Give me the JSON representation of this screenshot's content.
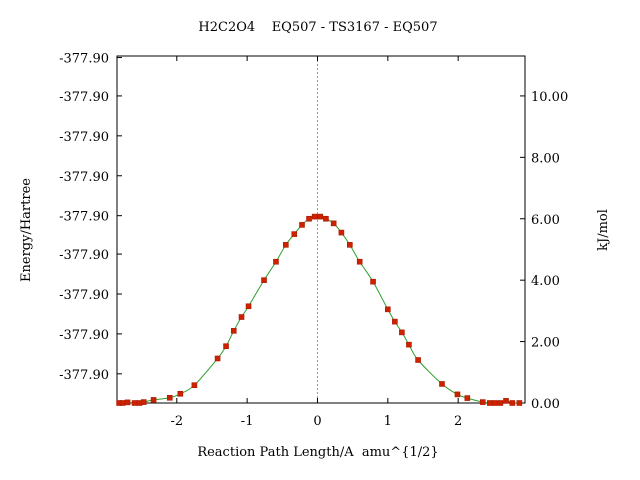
{
  "chart_data": {
    "type": "scatter",
    "title": "H2C2O4    EQ507 - TS3167 - EQ507",
    "xlabel": "Reaction Path Length/A  amu^{1/2}",
    "ylabel": "Energy/Hartree",
    "y2label": "kJ/mol",
    "xlim": [
      -2.85,
      2.95
    ],
    "ylim_kj": [
      0.0,
      11.3
    ],
    "x_ticks": [
      {
        "value": -2,
        "label": "-2"
      },
      {
        "value": -1,
        "label": "-1"
      },
      {
        "value": 0,
        "label": "0"
      },
      {
        "value": 1,
        "label": "1"
      },
      {
        "value": 2,
        "label": "2"
      }
    ],
    "y_left_ticks": [
      {
        "value": 0.0,
        "label": ""
      },
      {
        "value": 0.95,
        "label": "-377.90"
      },
      {
        "value": 2.25,
        "label": "-377.90"
      },
      {
        "value": 3.55,
        "label": "-377.90"
      },
      {
        "value": 4.85,
        "label": "-377.90"
      },
      {
        "value": 6.1,
        "label": "-377.90"
      },
      {
        "value": 7.4,
        "label": "-377.90"
      },
      {
        "value": 8.7,
        "label": "-377.90"
      },
      {
        "value": 10.0,
        "label": "-377.90"
      },
      {
        "value": 11.25,
        "label": "-377.90"
      }
    ],
    "y_right_ticks": [
      {
        "value": 0.0,
        "label": "0.00"
      },
      {
        "value": 2.0,
        "label": "2.00"
      },
      {
        "value": 4.0,
        "label": "4.00"
      },
      {
        "value": 6.0,
        "label": "6.00"
      },
      {
        "value": 8.0,
        "label": "8.00"
      },
      {
        "value": 10.0,
        "label": "10.00"
      }
    ],
    "ts_line_x": 0,
    "curve_color": "#2ca02c",
    "marker_color": "#cc2200",
    "points": [
      {
        "x": -2.82,
        "y": 0.0
      },
      {
        "x": -2.77,
        "y": 0.0
      },
      {
        "x": -2.7,
        "y": 0.02
      },
      {
        "x": -2.6,
        "y": 0.0
      },
      {
        "x": -2.53,
        "y": 0.0
      },
      {
        "x": -2.47,
        "y": 0.03
      },
      {
        "x": -2.33,
        "y": 0.1
      },
      {
        "x": -2.1,
        "y": 0.17
      },
      {
        "x": -1.95,
        "y": 0.3
      },
      {
        "x": -1.75,
        "y": 0.58
      },
      {
        "x": -1.42,
        "y": 1.45
      },
      {
        "x": -1.3,
        "y": 1.85
      },
      {
        "x": -1.19,
        "y": 2.35
      },
      {
        "x": -1.08,
        "y": 2.8
      },
      {
        "x": -0.98,
        "y": 3.15
      },
      {
        "x": -0.76,
        "y": 4.0
      },
      {
        "x": -0.59,
        "y": 4.6
      },
      {
        "x": -0.45,
        "y": 5.15
      },
      {
        "x": -0.33,
        "y": 5.5
      },
      {
        "x": -0.22,
        "y": 5.8
      },
      {
        "x": -0.12,
        "y": 6.0
      },
      {
        "x": -0.04,
        "y": 6.07
      },
      {
        "x": 0.04,
        "y": 6.07
      },
      {
        "x": 0.12,
        "y": 6.0
      },
      {
        "x": 0.23,
        "y": 5.85
      },
      {
        "x": 0.34,
        "y": 5.55
      },
      {
        "x": 0.46,
        "y": 5.15
      },
      {
        "x": 0.6,
        "y": 4.6
      },
      {
        "x": 0.79,
        "y": 3.95
      },
      {
        "x": 1.0,
        "y": 3.05
      },
      {
        "x": 1.1,
        "y": 2.65
      },
      {
        "x": 1.2,
        "y": 2.3
      },
      {
        "x": 1.3,
        "y": 1.9
      },
      {
        "x": 1.43,
        "y": 1.4
      },
      {
        "x": 1.77,
        "y": 0.62
      },
      {
        "x": 1.99,
        "y": 0.28
      },
      {
        "x": 2.13,
        "y": 0.16
      },
      {
        "x": 2.35,
        "y": 0.03
      },
      {
        "x": 2.45,
        "y": 0.0
      },
      {
        "x": 2.52,
        "y": 0.0
      },
      {
        "x": 2.6,
        "y": 0.0
      },
      {
        "x": 2.68,
        "y": 0.07
      },
      {
        "x": 2.77,
        "y": 0.0
      },
      {
        "x": 2.87,
        "y": 0.0
      }
    ]
  }
}
